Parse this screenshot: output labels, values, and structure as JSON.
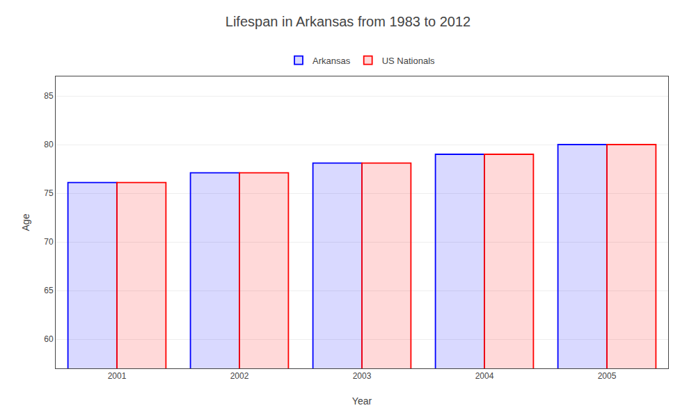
{
  "chart_data": {
    "type": "bar",
    "title": "Lifespan in Arkansas from 1983 to 2012",
    "xlabel": "Year",
    "ylabel": "Age",
    "categories": [
      "2001",
      "2002",
      "2003",
      "2004",
      "2005"
    ],
    "series": [
      {
        "name": "Arkansas",
        "color": "#0000ff",
        "values": [
          76.1,
          77.1,
          78.1,
          79.0,
          80.0
        ]
      },
      {
        "name": "US Nationals",
        "color": "#ff0000",
        "values": [
          76.1,
          77.1,
          78.1,
          79.0,
          80.0
        ]
      }
    ],
    "ylim": [
      57,
      87
    ],
    "yticks": [
      60,
      65,
      70,
      75,
      80,
      85
    ],
    "grid": true,
    "legend": "top"
  }
}
